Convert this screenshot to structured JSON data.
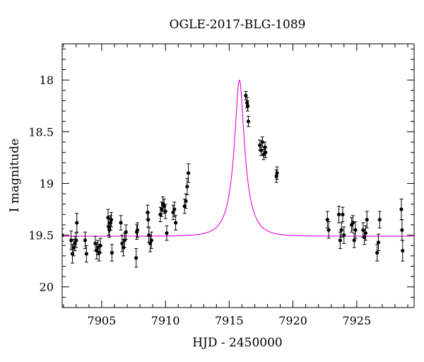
{
  "chart_data": {
    "type": "scatter",
    "title": "OGLE-2017-BLG-1089",
    "xlabel": "HJD - 2450000",
    "ylabel": "I magnitude",
    "xlim": [
      7901.9,
      7929.5
    ],
    "ylim": [
      20.2,
      17.65
    ],
    "y_inverted": true,
    "x_ticks": [
      7905,
      7910,
      7915,
      7920,
      7925
    ],
    "x_tick_labels": [
      "7905",
      "7910",
      "7915",
      "7920",
      "7925"
    ],
    "y_ticks": [
      18,
      18.5,
      19,
      19.5,
      20
    ],
    "y_tick_labels": [
      "18",
      "18.5",
      "19",
      "19.5",
      "20"
    ],
    "grid": false,
    "model_color": "#e600e6",
    "points_color": "#000000",
    "series": [
      {
        "type": "errorbar-scatter",
        "x": [
          7901.9,
          7902.6,
          7902.7,
          7902.8,
          7902.9,
          7903.0,
          7903.05,
          7903.7,
          7903.8,
          7904.5,
          7904.6,
          7904.7,
          7904.8,
          7904.9,
          7905.5,
          7905.55,
          7905.6,
          7905.7,
          7905.75,
          7905.8,
          7906.5,
          7906.6,
          7906.7,
          7906.8,
          7906.9,
          7907.7,
          7907.75,
          7907.8,
          7908.6,
          7908.65,
          7908.7,
          7908.8,
          7908.9,
          7909.6,
          7909.7,
          7909.8,
          7909.9,
          7910.0,
          7910.1,
          7910.6,
          7910.7,
          7910.8,
          7911.5,
          7911.6,
          7911.7,
          7911.8,
          7916.3,
          7916.4,
          7916.45,
          7916.5,
          7917.4,
          7917.5,
          7917.6,
          7917.7,
          7917.8,
          7917.85,
          7918.7,
          7918.75,
          7922.7,
          7922.8,
          7923.6,
          7923.7,
          7923.8,
          7923.9,
          7924.0,
          7924.6,
          7924.7,
          7924.8,
          7924.9,
          7925.5,
          7925.6,
          7925.7,
          7925.8,
          7926.6,
          7926.7,
          7926.8,
          7928.5,
          7928.55,
          7928.6
        ],
        "y": [
          19.5,
          19.55,
          19.68,
          19.62,
          19.58,
          19.55,
          19.38,
          19.55,
          19.68,
          19.58,
          19.65,
          19.62,
          19.67,
          19.6,
          19.33,
          19.42,
          19.45,
          19.38,
          19.35,
          19.67,
          19.38,
          19.58,
          19.62,
          19.55,
          19.47,
          19.72,
          19.47,
          19.45,
          19.28,
          19.35,
          19.5,
          19.58,
          19.55,
          19.3,
          19.25,
          19.2,
          19.22,
          19.27,
          19.48,
          19.28,
          19.25,
          19.38,
          19.22,
          19.17,
          19.03,
          18.9,
          18.15,
          18.22,
          18.25,
          18.4,
          18.63,
          18.68,
          18.6,
          18.72,
          18.65,
          18.7,
          18.93,
          18.9,
          19.35,
          19.45,
          19.3,
          19.55,
          19.45,
          19.3,
          19.5,
          19.4,
          19.38,
          19.55,
          19.45,
          19.45,
          19.52,
          19.48,
          19.35,
          19.67,
          19.57,
          19.35,
          19.25,
          19.45,
          19.65
        ],
        "yerr": [
          0.06,
          0.09,
          0.09,
          0.08,
          0.07,
          0.07,
          0.09,
          0.08,
          0.08,
          0.07,
          0.08,
          0.07,
          0.08,
          0.07,
          0.08,
          0.08,
          0.07,
          0.07,
          0.07,
          0.08,
          0.07,
          0.08,
          0.08,
          0.07,
          0.07,
          0.09,
          0.07,
          0.07,
          0.07,
          0.07,
          0.07,
          0.08,
          0.08,
          0.07,
          0.07,
          0.07,
          0.07,
          0.07,
          0.07,
          0.07,
          0.07,
          0.07,
          0.07,
          0.07,
          0.08,
          0.09,
          0.04,
          0.05,
          0.05,
          0.05,
          0.05,
          0.05,
          0.05,
          0.05,
          0.05,
          0.05,
          0.06,
          0.06,
          0.08,
          0.08,
          0.08,
          0.08,
          0.07,
          0.07,
          0.08,
          0.07,
          0.07,
          0.07,
          0.08,
          0.07,
          0.07,
          0.07,
          0.08,
          0.08,
          0.08,
          0.08,
          0.1,
          0.1,
          0.1
        ]
      },
      {
        "type": "model-curve",
        "t0": 7915.8,
        "tE": 1.25,
        "u0": 0.3,
        "baseline": 19.51,
        "peak": 18.0
      }
    ]
  }
}
